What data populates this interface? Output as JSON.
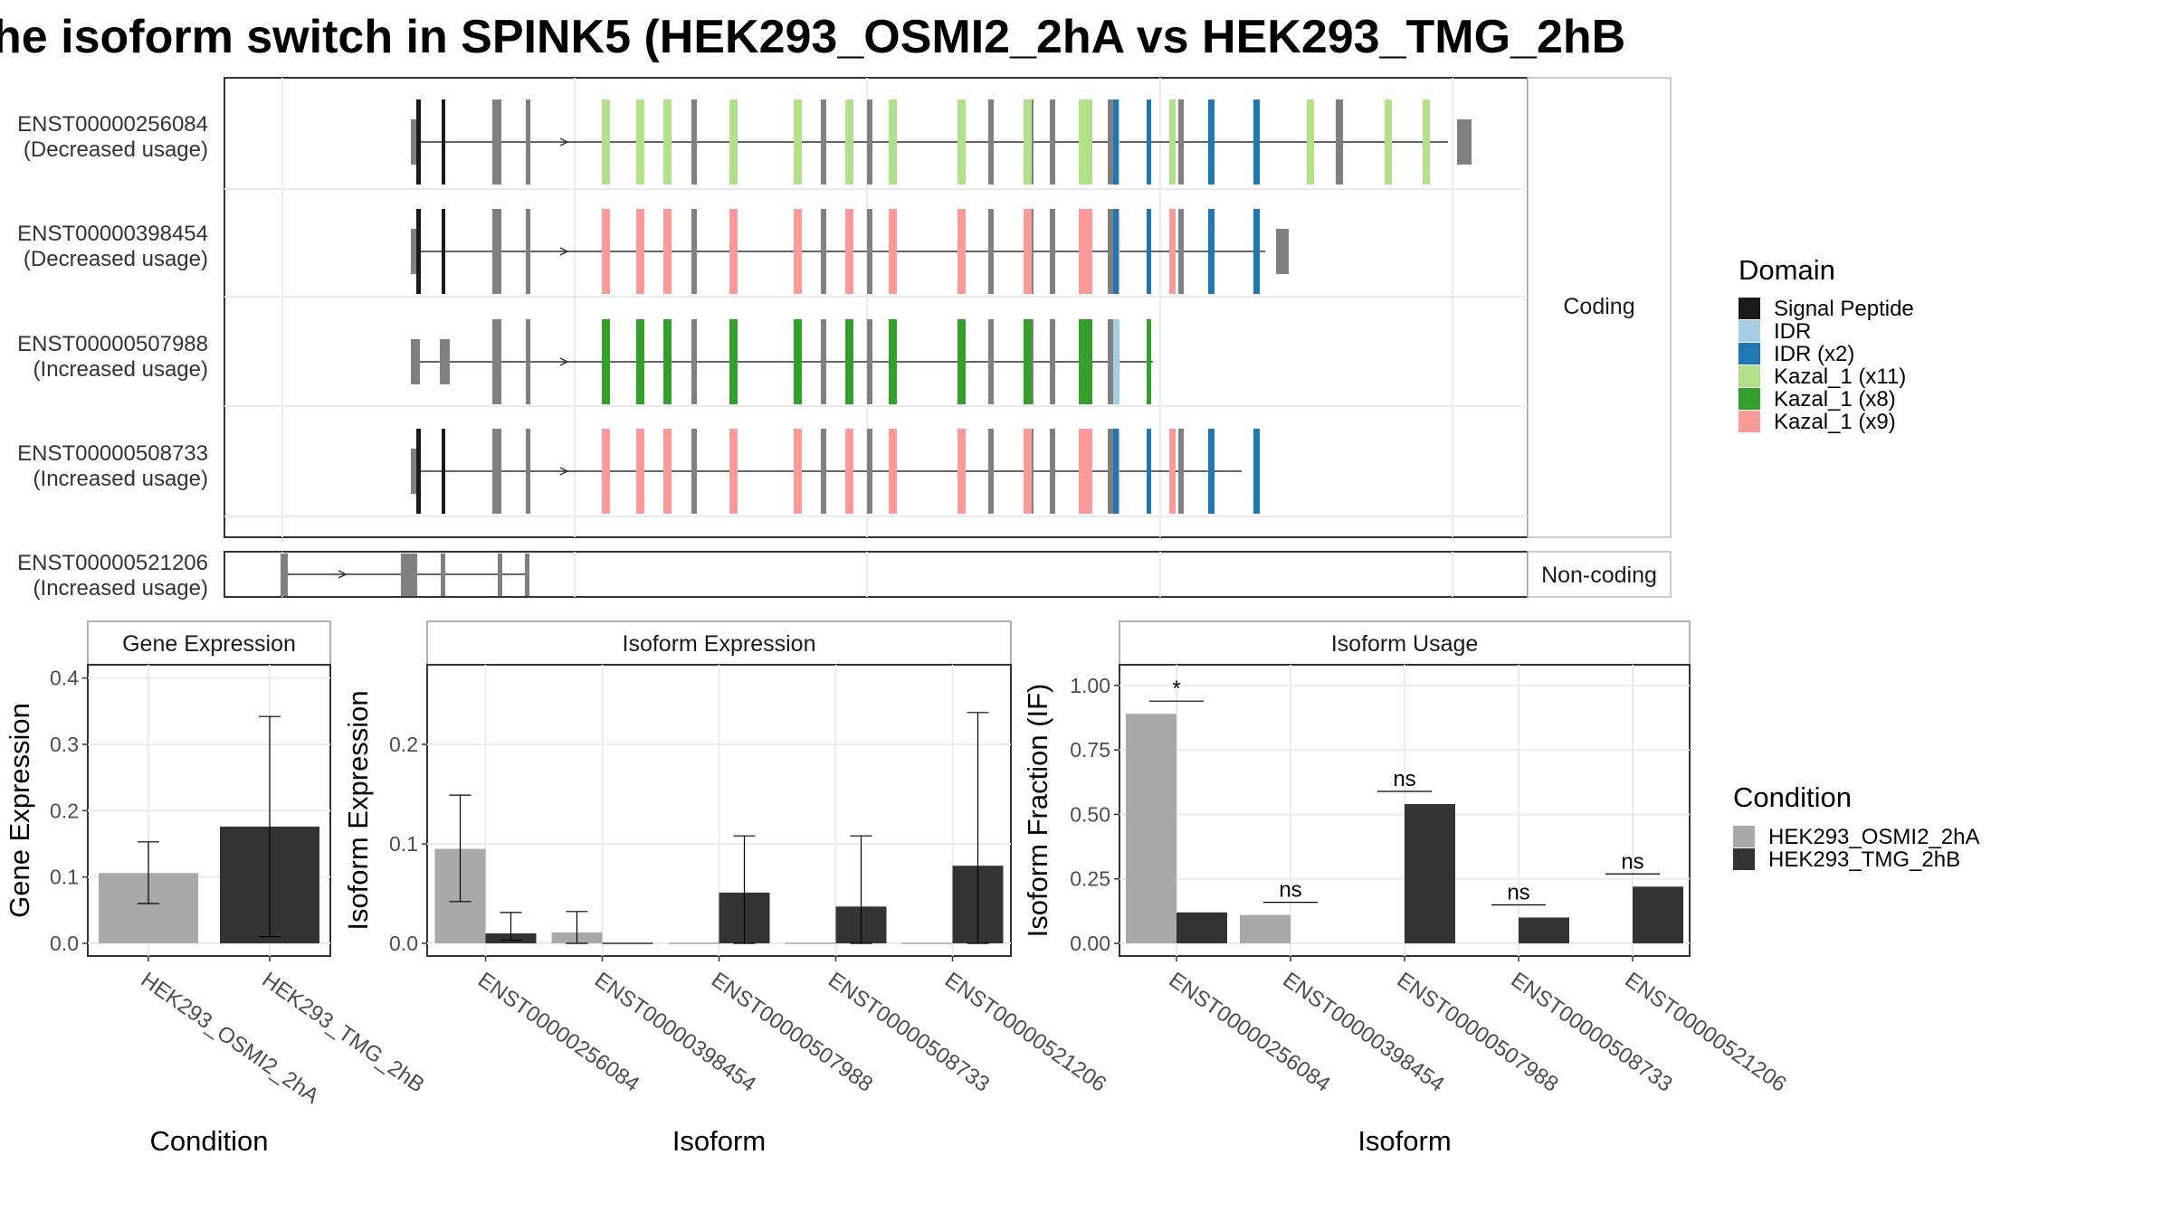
{
  "title": "he isoform switch in SPINK5 (HEK293_OSMI2_2hA vs HEK293_TMG_2hB",
  "structure": {
    "strips": {
      "coding": "Coding",
      "noncoding": "Non-coding"
    },
    "isoforms": [
      {
        "id": "ENST00000256084",
        "usage": "(Decreased usage)",
        "domain_color": "#b2df8a",
        "group": "coding"
      },
      {
        "id": "ENST00000398454",
        "usage": "(Decreased usage)",
        "domain_color": "#fb9a99",
        "group": "coding"
      },
      {
        "id": "ENST00000507988",
        "usage": "(Increased usage)",
        "domain_color": "#33a02c",
        "group": "coding"
      },
      {
        "id": "ENST00000508733",
        "usage": "(Increased usage)",
        "domain_color": "#fb9a99",
        "group": "coding"
      },
      {
        "id": "ENST00000521206",
        "usage": "(Increased usage)",
        "domain_color": "#808080",
        "group": "noncoding"
      }
    ]
  },
  "legends": {
    "domain": {
      "title": "Domain",
      "items": [
        {
          "label": "Signal Peptide",
          "color": "#1a1a1a"
        },
        {
          "label": "IDR",
          "color": "#a6cee3"
        },
        {
          "label": "IDR (x2)",
          "color": "#1f78b4"
        },
        {
          "label": "Kazal_1 (x11)",
          "color": "#b2df8a"
        },
        {
          "label": "Kazal_1 (x8)",
          "color": "#33a02c"
        },
        {
          "label": "Kazal_1 (x9)",
          "color": "#fb9a99"
        }
      ]
    },
    "condition": {
      "title": "Condition",
      "items": [
        {
          "label": "HEK293_OSMI2_2hA",
          "color": "#a9a9a9"
        },
        {
          "label": "HEK293_TMG_2hB",
          "color": "#333333"
        }
      ]
    }
  },
  "chart_data": [
    {
      "type": "bar",
      "title": "Gene Expression",
      "xlabel": "Condition",
      "ylabel": "Gene Expression",
      "ylim": [
        0,
        0.42
      ],
      "yticks": [
        "0.0",
        "0.1",
        "0.2",
        "0.3",
        "0.4"
      ],
      "categories": [
        "HEK293_OSMI2_2hA",
        "HEK293_TMG_2hB"
      ],
      "values": [
        0.106,
        0.176
      ],
      "err_low": [
        0.06,
        0.01
      ],
      "err_high": [
        0.153,
        0.342
      ],
      "colors": [
        "#a9a9a9",
        "#333333"
      ]
    },
    {
      "type": "bar",
      "title": "Isoform Expression",
      "xlabel": "Isoform",
      "ylabel": "Isoform Expression",
      "ylim": [
        0,
        0.28
      ],
      "yticks": [
        "0.0",
        "0.1",
        "0.2"
      ],
      "categories": [
        "ENST00000256084",
        "ENST00000398454",
        "ENST00000507988",
        "ENST00000508733",
        "ENST00000521206"
      ],
      "series": [
        {
          "name": "HEK293_OSMI2_2hA",
          "values": [
            0.095,
            0.011,
            0.0,
            0.0,
            0.0
          ],
          "err_low": [
            0.042,
            0.0,
            null,
            null,
            null
          ],
          "err_high": [
            0.149,
            0.032,
            null,
            null,
            null
          ]
        },
        {
          "name": "HEK293_TMG_2hB",
          "values": [
            0.01,
            0.0,
            0.051,
            0.037,
            0.078
          ],
          "err_low": [
            0.003,
            null,
            0.0,
            0.0,
            0.0
          ],
          "err_high": [
            0.031,
            null,
            0.108,
            0.108,
            0.232
          ]
        }
      ]
    },
    {
      "type": "bar",
      "title": "Isoform Usage",
      "xlabel": "Isoform",
      "ylabel": "Isoform Fraction (IF)",
      "ylim": [
        0,
        1.08
      ],
      "yticks": [
        "0.00",
        "0.25",
        "0.50",
        "0.75",
        "1.00"
      ],
      "categories": [
        "ENST00000256084",
        "ENST00000398454",
        "ENST00000507988",
        "ENST00000508733",
        "ENST00000521206"
      ],
      "series": [
        {
          "name": "HEK293_OSMI2_2hA",
          "values": [
            0.89,
            0.11,
            0.0,
            0.0,
            0.0
          ]
        },
        {
          "name": "HEK293_TMG_2hB",
          "values": [
            0.12,
            0.0,
            0.54,
            0.1,
            0.22
          ]
        }
      ],
      "significance": [
        "*",
        "ns",
        "ns",
        "ns",
        "ns"
      ]
    }
  ]
}
